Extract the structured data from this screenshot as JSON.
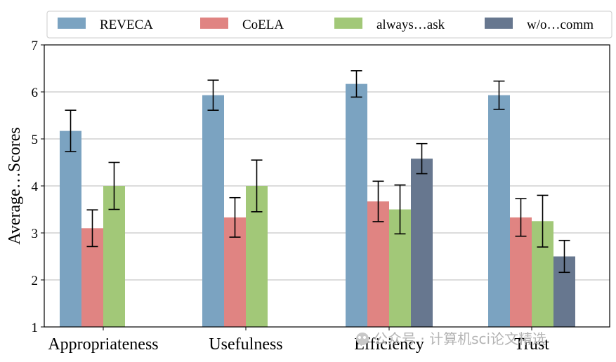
{
  "chart_data": {
    "type": "bar",
    "title": "",
    "xlabel": "",
    "ylabel": "Average…Scores",
    "ylim": [
      1,
      7
    ],
    "yticks": [
      1,
      2,
      3,
      4,
      5,
      6,
      7
    ],
    "grid": "horizontal",
    "legend_position": "top",
    "categories": [
      "Appropriateness",
      "Usefulness",
      "Efficiency",
      "Trust"
    ],
    "series": [
      {
        "name": "REVECA",
        "color": "#7ba3c1",
        "values": [
          5.17,
          5.93,
          6.17,
          5.93
        ],
        "errors": [
          0.44,
          0.32,
          0.28,
          0.3
        ]
      },
      {
        "name": "CoELA",
        "color": "#e08482",
        "values": [
          3.1,
          3.33,
          3.67,
          3.33
        ],
        "errors": [
          0.39,
          0.42,
          0.43,
          0.4
        ]
      },
      {
        "name": "always…ask",
        "color": "#a2c878",
        "values": [
          4.0,
          4.0,
          3.5,
          3.25
        ],
        "errors": [
          0.5,
          0.55,
          0.52,
          0.55
        ]
      },
      {
        "name": "w/o…comm",
        "color": "#67778f",
        "values": [
          null,
          null,
          4.58,
          2.5
        ],
        "errors": [
          null,
          null,
          0.32,
          0.34
        ]
      }
    ]
  },
  "watermark": "公众号 · 计算机sci论文精选"
}
